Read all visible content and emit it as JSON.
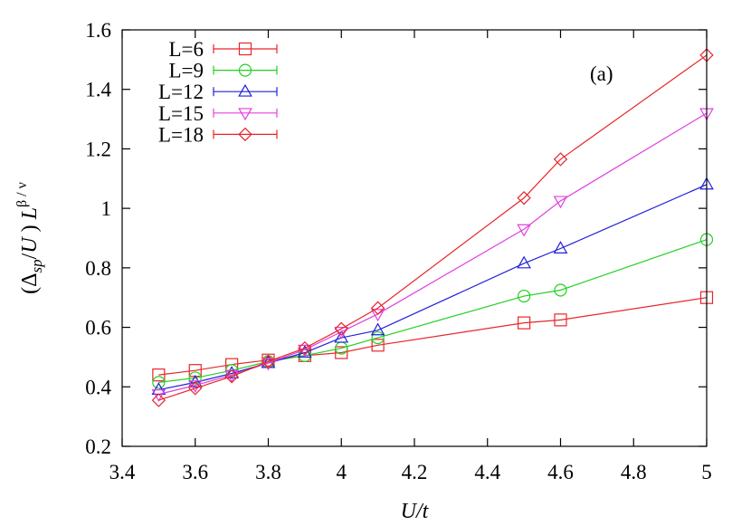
{
  "chart_data": {
    "type": "line",
    "xlabel": "U/t",
    "ylabel": {
      "open": "(Δ",
      "sub": "sp",
      "mid": "/",
      "italicU": "U",
      "close": " ) ",
      "italicL": "L",
      "sup": "β / ν"
    },
    "annotation": "(a)",
    "xlim": [
      3.4,
      5.0
    ],
    "ylim": [
      0.2,
      1.6
    ],
    "xticks": [
      "3.4",
      "3.6",
      "3.8",
      "4",
      "4.2",
      "4.4",
      "4.6",
      "4.8",
      "5"
    ],
    "yticks": [
      "0.2",
      "0.4",
      "0.6",
      "0.8",
      "1",
      "1.2",
      "1.4",
      "1.6"
    ],
    "grid": false,
    "legend_position": "top-left",
    "x": [
      3.5,
      3.6,
      3.7,
      3.8,
      3.9,
      4.0,
      4.1,
      4.5,
      4.6,
      5.0
    ],
    "series": [
      {
        "name": "L=6",
        "color": "#e8262a",
        "marker": "square",
        "values": [
          0.44,
          0.455,
          0.475,
          0.49,
          0.505,
          0.515,
          0.54,
          0.615,
          0.625,
          0.7
        ]
      },
      {
        "name": "L=9",
        "color": "#22d022",
        "marker": "circle",
        "values": [
          0.415,
          0.43,
          0.455,
          0.485,
          0.505,
          0.53,
          0.565,
          0.705,
          0.725,
          0.895
        ]
      },
      {
        "name": "L=12",
        "color": "#2020d8",
        "marker": "triangle-up",
        "values": [
          0.39,
          0.415,
          0.445,
          0.48,
          0.515,
          0.565,
          0.59,
          0.815,
          0.865,
          1.08
        ]
      },
      {
        "name": "L=15",
        "color": "#e040e0",
        "marker": "triangle-down",
        "values": [
          0.375,
          0.405,
          0.44,
          0.48,
          0.525,
          0.585,
          0.645,
          0.93,
          1.025,
          1.32
        ]
      },
      {
        "name": "L=18",
        "color": "#e8262a",
        "marker": "diamond",
        "values": [
          0.355,
          0.395,
          0.435,
          0.485,
          0.53,
          0.595,
          0.665,
          1.035,
          1.165,
          1.515
        ]
      }
    ]
  }
}
